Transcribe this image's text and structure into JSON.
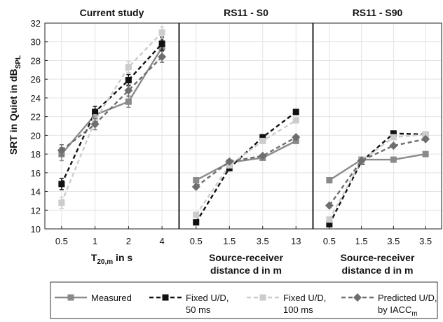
{
  "figure": {
    "ylabel_main": "SRT in Quiet in dB",
    "ylabel_sub": "SPL"
  },
  "chart_data": [
    {
      "type": "line",
      "title": "Current study",
      "xlabel_main": "T",
      "xlabel_sub": "20,m",
      "xlabel_rest": " in s",
      "xlabel_line2": "",
      "categories": [
        "0.5",
        "1",
        "2",
        "4"
      ],
      "ylim": [
        10,
        32
      ],
      "yticks": [
        10,
        12,
        14,
        16,
        18,
        20,
        22,
        24,
        26,
        28,
        30,
        32
      ],
      "grid": true,
      "series": [
        {
          "name": "Measured",
          "values": [
            18.0,
            22.2,
            23.6,
            29.4
          ],
          "err": [
            0.7,
            0.6,
            0.6,
            0.8
          ]
        },
        {
          "name": "Fixed U/D, 50 ms",
          "values": [
            14.8,
            22.5,
            25.9,
            29.8
          ],
          "err": [
            0.6,
            0.6,
            0.6,
            0.7
          ]
        },
        {
          "name": "Fixed U/D, 100 ms",
          "values": [
            12.8,
            21.6,
            27.3,
            31.0
          ],
          "err": [
            0.6,
            0.6,
            0.6,
            0.6
          ]
        },
        {
          "name": "Predicted U/D, by IACC",
          "values": [
            18.4,
            21.2,
            24.8,
            28.4
          ],
          "err": [
            0.6,
            0.6,
            0.6,
            0.6
          ]
        }
      ]
    },
    {
      "type": "line",
      "title": "RS11 - S0",
      "xlabel_main": "Source-receiver",
      "xlabel_sub": "",
      "xlabel_rest": "",
      "xlabel_line2": "distance d in m",
      "categories": [
        "0.5",
        "1.5",
        "3.5",
        "13"
      ],
      "ylim": [
        10,
        32
      ],
      "yticks": [],
      "grid": true,
      "series": [
        {
          "name": "Measured",
          "values": [
            15.2,
            17.1,
            17.6,
            19.4
          ]
        },
        {
          "name": "Fixed U/D, 50 ms",
          "values": [
            10.7,
            16.5,
            19.8,
            22.5
          ]
        },
        {
          "name": "Fixed U/D, 100 ms",
          "values": [
            11.5,
            16.8,
            19.4,
            21.6
          ]
        },
        {
          "name": "Predicted U/D, by IACC",
          "values": [
            14.5,
            17.2,
            17.8,
            19.8
          ]
        }
      ]
    },
    {
      "type": "line",
      "title": "RS11 - S90",
      "xlabel_main": "Source-receiver",
      "xlabel_sub": "",
      "xlabel_rest": "",
      "xlabel_line2": "distance d in m",
      "categories": [
        "0.5",
        "1.5",
        "3.5",
        "3.5"
      ],
      "ylim": [
        10,
        32
      ],
      "yticks": [],
      "grid": true,
      "series": [
        {
          "name": "Measured",
          "values": [
            15.2,
            17.4,
            17.4,
            18.0
          ]
        },
        {
          "name": "Fixed U/D, 50 ms",
          "values": [
            10.5,
            17.2,
            20.2,
            20.1
          ]
        },
        {
          "name": "Fixed U/D, 100 ms",
          "values": [
            11.0,
            17.3,
            19.8,
            20.1
          ]
        },
        {
          "name": "Predicted U/D, by IACC",
          "values": [
            12.5,
            17.3,
            18.9,
            19.6
          ]
        }
      ]
    }
  ],
  "legend": {
    "placement": "bottom",
    "items": [
      {
        "line1": "Measured",
        "line2": "",
        "sub": ""
      },
      {
        "line1": "Fixed U/D,",
        "line2": "50 ms",
        "sub": ""
      },
      {
        "line1": "Fixed U/D,",
        "line2": "100 ms",
        "sub": ""
      },
      {
        "line1": "Predicted U/D,",
        "line2": "by IACC",
        "sub": "m"
      }
    ]
  },
  "styles": [
    {
      "color": "#8a8a8a",
      "dash": "",
      "marker": "square"
    },
    {
      "color": "#111111",
      "dash": "6,4",
      "marker": "square"
    },
    {
      "color": "#cccccc",
      "dash": "6,4",
      "marker": "square"
    },
    {
      "color": "#6e6e6e",
      "dash": "6,4",
      "marker": "diamond"
    }
  ]
}
